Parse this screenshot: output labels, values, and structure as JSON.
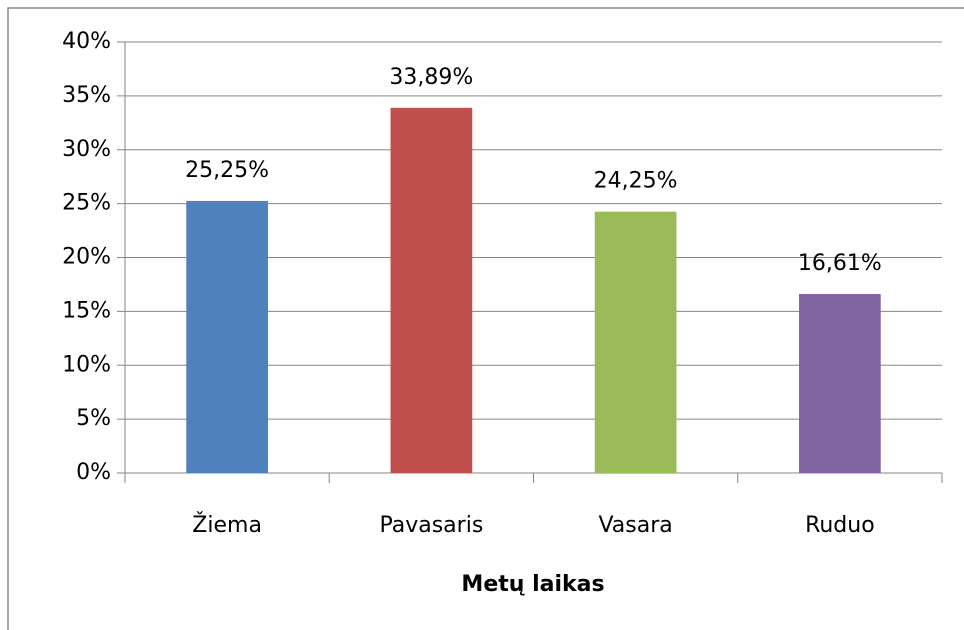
{
  "chart_data": {
    "type": "bar",
    "x_label": "Metų laikas",
    "categories": [
      "Žiema",
      "Pavasaris",
      "Vasara",
      "Ruduo"
    ],
    "values": [
      25.25,
      33.89,
      24.25,
      16.61
    ],
    "value_labels": [
      "25,25%",
      "33,89%",
      "24,25%",
      "16,61%"
    ],
    "colors": [
      "#4f81bd",
      "#c0504d",
      "#9bbb59",
      "#8064a2"
    ],
    "ylim": [
      0,
      40
    ],
    "yticks": [
      {
        "value": 0,
        "label": "0%"
      },
      {
        "value": 5,
        "label": "5%"
      },
      {
        "value": 10,
        "label": "10%"
      },
      {
        "value": 15,
        "label": "15%"
      },
      {
        "value": 20,
        "label": "20%"
      },
      {
        "value": 25,
        "label": "25%"
      },
      {
        "value": 30,
        "label": "30%"
      },
      {
        "value": 35,
        "label": "35%"
      },
      {
        "value": 40,
        "label": "40%"
      }
    ],
    "grid": true
  }
}
